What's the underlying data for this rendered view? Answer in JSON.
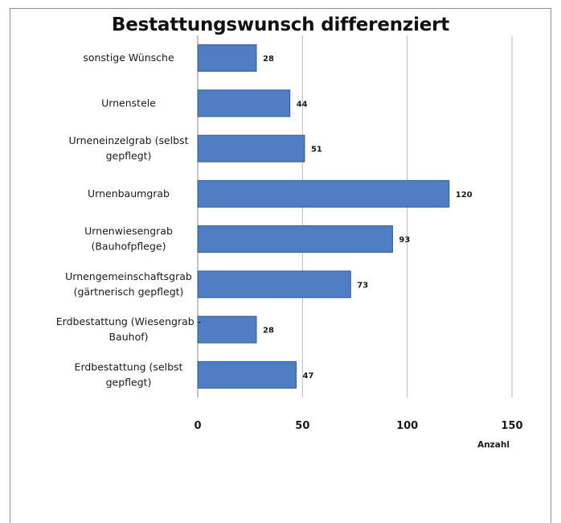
{
  "chart_data": {
    "type": "bar",
    "orientation": "horizontal",
    "title": "Bestattungswunsch differenziert",
    "xlabel": "Anzahl",
    "ylabel": "",
    "categories": [
      "sonstige Wünsche",
      "Urnenstele",
      "Urneneinzelgrab (selbst gepflegt)",
      "Urnenbaumgrab",
      "Urnenwiesengrab (Bauhofpflege)",
      "Urnengemeinschaftsgrab (gärtnerisch gepflegt)",
      "Erdbestattung (Wiesengrab - Bauhof)",
      "Erdbestattung (selbst gepflegt)"
    ],
    "category_lines": [
      [
        "sonstige Wünsche"
      ],
      [
        "Urnenstele"
      ],
      [
        "Urneneinzelgrab (selbst",
        "gepflegt)"
      ],
      [
        "Urnenbaumgrab"
      ],
      [
        "Urnenwiesengrab",
        "(Bauhofpflege)"
      ],
      [
        "Urnengemeinschaftsgrab",
        "(gärtnerisch gepflegt)"
      ],
      [
        "Erdbestattung (Wiesengrab -",
        "Bauhof)"
      ],
      [
        "Erdbestattung (selbst",
        "gepflegt)"
      ]
    ],
    "values": [
      28,
      44,
      51,
      120,
      93,
      73,
      28,
      47
    ],
    "data_labels": [
      "28",
      "44",
      "51",
      "120",
      "93",
      "73",
      "28",
      "47"
    ],
    "xlim": [
      0,
      150
    ],
    "xticks": [
      0,
      50,
      100,
      150
    ],
    "xtick_labels": [
      "0",
      "50",
      "100",
      "150"
    ],
    "grid": "vertical",
    "legend": "none",
    "colors": {
      "bar": "#4f7ec2",
      "bar_edge": "#2f5a96",
      "grid": "#b9b9b9"
    }
  }
}
